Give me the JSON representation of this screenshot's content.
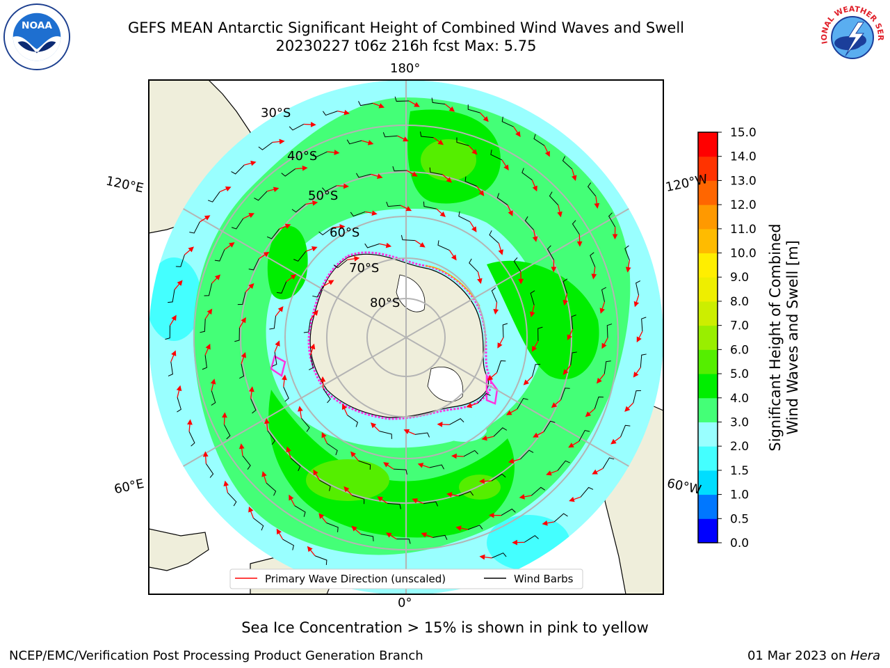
{
  "header": {
    "title_line1": "GEFS MEAN Antarctic Significant Height of Combined Wind Waves and Swell",
    "title_line2": "20230227 t06z 216h fcst   Max: 5.75"
  },
  "logos": {
    "noaa": "NOAA",
    "nws": "NATIONAL WEATHER SERVICE"
  },
  "map": {
    "projection": "south-polar-stereographic",
    "lon_labels": {
      "top": "180°",
      "bottom": "0°",
      "upper_left": "120°E",
      "upper_right": "120°W",
      "lower_left": "60°E",
      "lower_right": "60°W"
    },
    "lat_labels": [
      "30°S",
      "40°S",
      "50°S",
      "60°S",
      "70°S",
      "80°S"
    ],
    "colors": {
      "land": "#efeedb",
      "ice_edge": "#ff33dd",
      "ice_fill": "#ffffff",
      "wave_arrow": "#ff0000",
      "barb": "#000000",
      "grid": "#b4b4b4"
    }
  },
  "legend": {
    "wave_label": "Primary Wave Direction (unscaled)",
    "barb_label": "Wind Barbs"
  },
  "colorbar": {
    "title_line1": "Significant Height of Combined",
    "title_line2": "Wind Waves and Swell [m]",
    "ticks": [
      "0.0",
      "0.5",
      "1.0",
      "1.5",
      "2.0",
      "3.0",
      "4.0",
      "5.0",
      "6.0",
      "7.0",
      "8.0",
      "9.0",
      "10.0",
      "11.0",
      "12.0",
      "13.0",
      "14.0",
      "15.0"
    ],
    "colors": [
      "#0000ff",
      "#0077ff",
      "#00ddff",
      "#44ffff",
      "#99ffff",
      "#44ff77",
      "#00ee00",
      "#55ee00",
      "#99ee00",
      "#ccee00",
      "#eeee00",
      "#ffee00",
      "#ffbb00",
      "#ff9900",
      "#ff6600",
      "#ff3300",
      "#ff0000"
    ]
  },
  "chart_data": {
    "type": "heatmap",
    "title": "GEFS MEAN Antarctic Significant Height of Combined Wind Waves and Swell",
    "max_value": 5.75,
    "unit": "m",
    "scale_bounds": [
      0.0,
      0.5,
      1.0,
      1.5,
      2.0,
      3.0,
      4.0,
      5.0,
      6.0,
      7.0,
      8.0,
      9.0,
      10.0,
      11.0,
      12.0,
      13.0,
      14.0,
      15.0
    ]
  },
  "captions": {
    "sea_ice": "Sea Ice Concentration > 15% is shown in pink to yellow",
    "footer_left": "NCEP/EMC/Verification Post Processing Product Generation Branch",
    "footer_date": "01 Mar 2023 on ",
    "footer_machine": "Hera"
  }
}
